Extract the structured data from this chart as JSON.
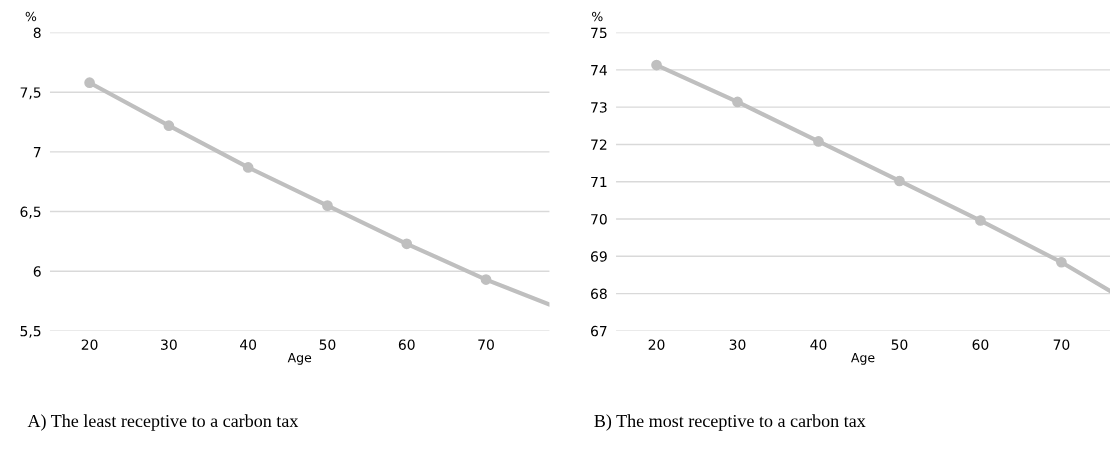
{
  "chart_data": [
    {
      "type": "line",
      "title": "A) The least receptive to a carbon tax",
      "xlabel": "Age",
      "ylabel": "%",
      "series": [
        {
          "color": "#bfbfbf",
          "marker": "none",
          "x": [
            20,
            30,
            40,
            50,
            60,
            70,
            78
          ],
          "values": [
            7.58,
            7.22,
            6.87,
            6.55,
            6.23,
            5.93,
            5.72
          ]
        },
        {
          "type": "scatter",
          "color": "#bfbfbf",
          "marker": "circle",
          "x": [
            20,
            30,
            40,
            50,
            60,
            70
          ],
          "values": [
            7.58,
            7.22,
            6.87,
            6.55,
            6.23,
            5.93
          ]
        }
      ],
      "xlim": [
        15,
        78
      ],
      "xticks": [
        20,
        30,
        40,
        50,
        60,
        70
      ],
      "ylim": [
        5.5,
        8
      ],
      "yticks": [
        {
          "value": 5.5,
          "label": "5,5"
        },
        6,
        {
          "value": 6.5,
          "label": "6,5"
        },
        7,
        {
          "value": 7.5,
          "label": "7,5"
        },
        8
      ],
      "grid": "y",
      "legend": false
    },
    {
      "type": "line",
      "title": "B) The most receptive to a carbon tax",
      "xlabel": "Age",
      "ylabel": "%",
      "series": [
        {
          "color": "#bfbfbf",
          "marker": "none",
          "x": [
            20,
            30,
            40,
            50,
            60,
            70,
            76
          ],
          "values": [
            74.13,
            73.14,
            72.08,
            71.02,
            69.96,
            68.84,
            68.07
          ]
        },
        {
          "type": "scatter",
          "color": "#bfbfbf",
          "marker": "circle",
          "x": [
            20,
            30,
            40,
            50,
            60,
            70
          ],
          "values": [
            74.13,
            73.14,
            72.08,
            71.02,
            69.96,
            68.84
          ]
        }
      ],
      "xlim": [
        15,
        76
      ],
      "xticks": [
        20,
        30,
        40,
        50,
        60,
        70
      ],
      "ylim": [
        67,
        75
      ],
      "yticks": [
        67,
        68,
        69,
        70,
        71,
        72,
        73,
        74,
        75
      ],
      "grid": "y",
      "legend": false
    }
  ]
}
